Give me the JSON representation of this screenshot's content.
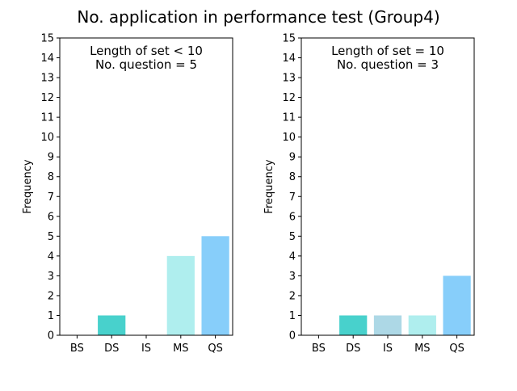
{
  "figure": {
    "title": "No. application in performance test (Group4)"
  },
  "chart_data": [
    {
      "type": "bar",
      "categories": [
        "BS",
        "DS",
        "IS",
        "MS",
        "QS"
      ],
      "values": [
        0,
        1,
        0,
        4,
        5
      ],
      "colors": [
        "#87CEFA",
        "#48D1CC",
        "#ADD8E6",
        "#AFEEEE",
        "#87CEFA"
      ],
      "annotation": [
        "Length of set < 10",
        "No. question = 5"
      ],
      "xlabel": "",
      "ylabel": "Frequency",
      "ylim": [
        0,
        15
      ],
      "yticks": [
        0,
        1,
        2,
        3,
        4,
        5,
        6,
        7,
        8,
        9,
        10,
        11,
        12,
        13,
        14,
        15
      ],
      "grid": false
    },
    {
      "type": "bar",
      "categories": [
        "BS",
        "DS",
        "IS",
        "MS",
        "QS"
      ],
      "values": [
        0,
        1,
        1,
        1,
        3
      ],
      "colors": [
        "#87CEFA",
        "#48D1CC",
        "#ADD8E6",
        "#AFEEEE",
        "#87CEFA"
      ],
      "annotation": [
        "Length of set = 10",
        "No. question = 3"
      ],
      "xlabel": "",
      "ylabel": "Frequency",
      "ylim": [
        0,
        15
      ],
      "yticks": [
        0,
        1,
        2,
        3,
        4,
        5,
        6,
        7,
        8,
        9,
        10,
        11,
        12,
        13,
        14,
        15
      ],
      "grid": false
    }
  ]
}
